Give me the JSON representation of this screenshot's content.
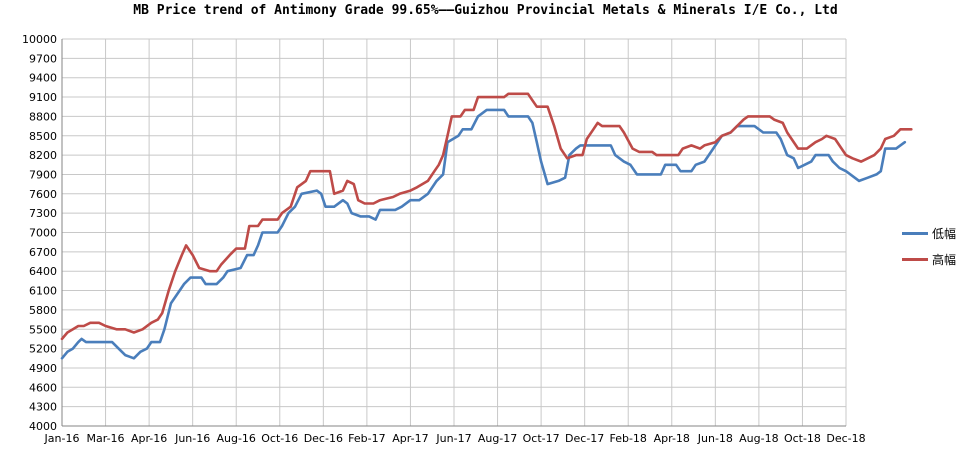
{
  "chart_data": {
    "type": "line",
    "title": "MB Price trend of Antimony Grade 99.65%——Guizhou Provincial Metals & Minerals I/E Co., Ltd",
    "xlabel": "",
    "ylabel": "",
    "ylim": [
      4000,
      10000
    ],
    "yticks": [
      4000,
      4300,
      4600,
      4900,
      5200,
      5500,
      5800,
      6100,
      6400,
      6700,
      7000,
      7300,
      7600,
      7900,
      8200,
      8500,
      8800,
      9100,
      9400,
      9700,
      10000
    ],
    "xticks": [
      "Jan-16",
      "Mar-16",
      "Apr-16",
      "Jun-16",
      "Aug-16",
      "Oct-16",
      "Dec-16",
      "Feb-17",
      "Apr-17",
      "Jun-17",
      "Aug-17",
      "Oct-17",
      "Dec-17",
      "Feb-18",
      "Apr-18",
      "Jun-18",
      "Aug-18",
      "Oct-18",
      "Dec-18"
    ],
    "grid": true,
    "legend_position": "right",
    "series": [
      {
        "name": "低幅",
        "color": "#4a7ebb",
        "points": [
          [
            0,
            5050
          ],
          [
            0.25,
            5150
          ],
          [
            0.5,
            5200
          ],
          [
            0.75,
            5300
          ],
          [
            0.9,
            5350
          ],
          [
            1.1,
            5300
          ],
          [
            2.3,
            5300
          ],
          [
            2.6,
            5200
          ],
          [
            2.9,
            5100
          ],
          [
            3.3,
            5050
          ],
          [
            3.6,
            5150
          ],
          [
            3.9,
            5200
          ],
          [
            4.1,
            5300
          ],
          [
            4.5,
            5300
          ],
          [
            4.7,
            5500
          ],
          [
            5.0,
            5900
          ],
          [
            5.4,
            6100
          ],
          [
            5.6,
            6200
          ],
          [
            5.9,
            6300
          ],
          [
            6.4,
            6300
          ],
          [
            6.6,
            6200
          ],
          [
            7.1,
            6200
          ],
          [
            7.4,
            6300
          ],
          [
            7.6,
            6400
          ],
          [
            8.2,
            6450
          ],
          [
            8.5,
            6650
          ],
          [
            8.8,
            6650
          ],
          [
            9.0,
            6800
          ],
          [
            9.2,
            7000
          ],
          [
            9.9,
            7000
          ],
          [
            10.1,
            7100
          ],
          [
            10.4,
            7300
          ],
          [
            10.7,
            7400
          ],
          [
            11.0,
            7600
          ],
          [
            11.7,
            7650
          ],
          [
            11.9,
            7600
          ],
          [
            12.1,
            7400
          ],
          [
            12.5,
            7400
          ],
          [
            12.9,
            7500
          ],
          [
            13.1,
            7450
          ],
          [
            13.3,
            7300
          ],
          [
            13.7,
            7250
          ],
          [
            14.1,
            7250
          ],
          [
            14.4,
            7200
          ],
          [
            14.6,
            7350
          ],
          [
            15.3,
            7350
          ],
          [
            15.6,
            7400
          ],
          [
            16.0,
            7500
          ],
          [
            16.4,
            7500
          ],
          [
            16.8,
            7600
          ],
          [
            17.2,
            7800
          ],
          [
            17.5,
            7900
          ],
          [
            17.7,
            8400
          ],
          [
            18.2,
            8500
          ],
          [
            18.4,
            8600
          ],
          [
            18.8,
            8600
          ],
          [
            19.1,
            8800
          ],
          [
            19.5,
            8900
          ],
          [
            20.3,
            8900
          ],
          [
            20.5,
            8800
          ],
          [
            21.4,
            8800
          ],
          [
            21.6,
            8700
          ],
          [
            21.8,
            8400
          ],
          [
            22.0,
            8100
          ],
          [
            22.3,
            7750
          ],
          [
            22.8,
            7800
          ],
          [
            23.1,
            7850
          ],
          [
            23.3,
            8200
          ],
          [
            23.6,
            8300
          ],
          [
            23.8,
            8350
          ],
          [
            25.2,
            8350
          ],
          [
            25.4,
            8200
          ],
          [
            25.8,
            8100
          ],
          [
            26.1,
            8050
          ],
          [
            26.4,
            7900
          ],
          [
            27.5,
            7900
          ],
          [
            27.7,
            8050
          ],
          [
            28.2,
            8050
          ],
          [
            28.4,
            7950
          ],
          [
            28.9,
            7950
          ],
          [
            29.1,
            8050
          ],
          [
            29.5,
            8100
          ],
          [
            29.9,
            8300
          ],
          [
            30.3,
            8500
          ],
          [
            30.7,
            8550
          ],
          [
            31.0,
            8650
          ],
          [
            31.8,
            8650
          ],
          [
            32.2,
            8550
          ],
          [
            32.8,
            8550
          ],
          [
            33.0,
            8450
          ],
          [
            33.3,
            8200
          ],
          [
            33.6,
            8150
          ],
          [
            33.8,
            8000
          ],
          [
            34.1,
            8050
          ],
          [
            34.4,
            8100
          ],
          [
            34.6,
            8200
          ],
          [
            35.2,
            8200
          ],
          [
            35.4,
            8100
          ],
          [
            35.7,
            8000
          ],
          [
            36.0,
            7950
          ],
          [
            36.2,
            7900
          ],
          [
            36.6,
            7800
          ],
          [
            37.0,
            7850
          ],
          [
            37.4,
            7900
          ],
          [
            37.6,
            7950
          ],
          [
            37.8,
            8300
          ],
          [
            38.3,
            8300
          ],
          [
            38.7,
            8400
          ]
        ]
      },
      {
        "name": "高幅",
        "color": "#be4b48",
        "points": [
          [
            0,
            5350
          ],
          [
            0.25,
            5450
          ],
          [
            0.5,
            5500
          ],
          [
            0.75,
            5550
          ],
          [
            1.0,
            5550
          ],
          [
            1.3,
            5600
          ],
          [
            1.7,
            5600
          ],
          [
            2.0,
            5550
          ],
          [
            2.5,
            5500
          ],
          [
            2.9,
            5500
          ],
          [
            3.3,
            5450
          ],
          [
            3.7,
            5500
          ],
          [
            4.1,
            5600
          ],
          [
            4.4,
            5650
          ],
          [
            4.6,
            5750
          ],
          [
            4.9,
            6100
          ],
          [
            5.2,
            6400
          ],
          [
            5.5,
            6650
          ],
          [
            5.7,
            6800
          ],
          [
            6.0,
            6650
          ],
          [
            6.3,
            6450
          ],
          [
            6.8,
            6400
          ],
          [
            7.1,
            6400
          ],
          [
            7.3,
            6500
          ],
          [
            7.7,
            6650
          ],
          [
            8.0,
            6750
          ],
          [
            8.4,
            6750
          ],
          [
            8.6,
            7100
          ],
          [
            9.0,
            7100
          ],
          [
            9.2,
            7200
          ],
          [
            9.9,
            7200
          ],
          [
            10.1,
            7300
          ],
          [
            10.5,
            7400
          ],
          [
            10.8,
            7700
          ],
          [
            11.2,
            7800
          ],
          [
            11.4,
            7950
          ],
          [
            12.3,
            7950
          ],
          [
            12.5,
            7600
          ],
          [
            12.9,
            7650
          ],
          [
            13.1,
            7800
          ],
          [
            13.4,
            7750
          ],
          [
            13.6,
            7500
          ],
          [
            13.9,
            7450
          ],
          [
            14.3,
            7450
          ],
          [
            14.6,
            7500
          ],
          [
            15.2,
            7550
          ],
          [
            15.5,
            7600
          ],
          [
            16.0,
            7650
          ],
          [
            16.3,
            7700
          ],
          [
            16.8,
            7800
          ],
          [
            17.1,
            7950
          ],
          [
            17.3,
            8050
          ],
          [
            17.5,
            8200
          ],
          [
            17.7,
            8500
          ],
          [
            17.9,
            8800
          ],
          [
            18.3,
            8800
          ],
          [
            18.5,
            8900
          ],
          [
            18.9,
            8900
          ],
          [
            19.1,
            9100
          ],
          [
            20.3,
            9100
          ],
          [
            20.5,
            9150
          ],
          [
            21.4,
            9150
          ],
          [
            21.6,
            9050
          ],
          [
            21.8,
            8950
          ],
          [
            22.3,
            8950
          ],
          [
            22.6,
            8650
          ],
          [
            22.9,
            8300
          ],
          [
            23.2,
            8150
          ],
          [
            23.6,
            8200
          ],
          [
            23.9,
            8200
          ],
          [
            24.1,
            8450
          ],
          [
            24.4,
            8600
          ],
          [
            24.6,
            8700
          ],
          [
            24.8,
            8650
          ],
          [
            25.6,
            8650
          ],
          [
            25.8,
            8550
          ],
          [
            26.2,
            8300
          ],
          [
            26.5,
            8250
          ],
          [
            27.1,
            8250
          ],
          [
            27.3,
            8200
          ],
          [
            28.3,
            8200
          ],
          [
            28.5,
            8300
          ],
          [
            28.9,
            8350
          ],
          [
            29.3,
            8300
          ],
          [
            29.5,
            8350
          ],
          [
            30.0,
            8400
          ],
          [
            30.3,
            8500
          ],
          [
            30.7,
            8550
          ],
          [
            31.0,
            8650
          ],
          [
            31.3,
            8750
          ],
          [
            31.5,
            8800
          ],
          [
            32.5,
            8800
          ],
          [
            32.7,
            8750
          ],
          [
            33.1,
            8700
          ],
          [
            33.3,
            8550
          ],
          [
            33.5,
            8450
          ],
          [
            33.8,
            8300
          ],
          [
            34.2,
            8300
          ],
          [
            34.6,
            8400
          ],
          [
            34.9,
            8450
          ],
          [
            35.1,
            8500
          ],
          [
            35.5,
            8450
          ],
          [
            35.8,
            8300
          ],
          [
            36.0,
            8200
          ],
          [
            36.3,
            8150
          ],
          [
            36.7,
            8100
          ],
          [
            37.0,
            8150
          ],
          [
            37.3,
            8200
          ],
          [
            37.6,
            8300
          ],
          [
            37.8,
            8450
          ],
          [
            38.2,
            8500
          ],
          [
            38.5,
            8600
          ],
          [
            39.0,
            8600
          ]
        ]
      }
    ]
  }
}
